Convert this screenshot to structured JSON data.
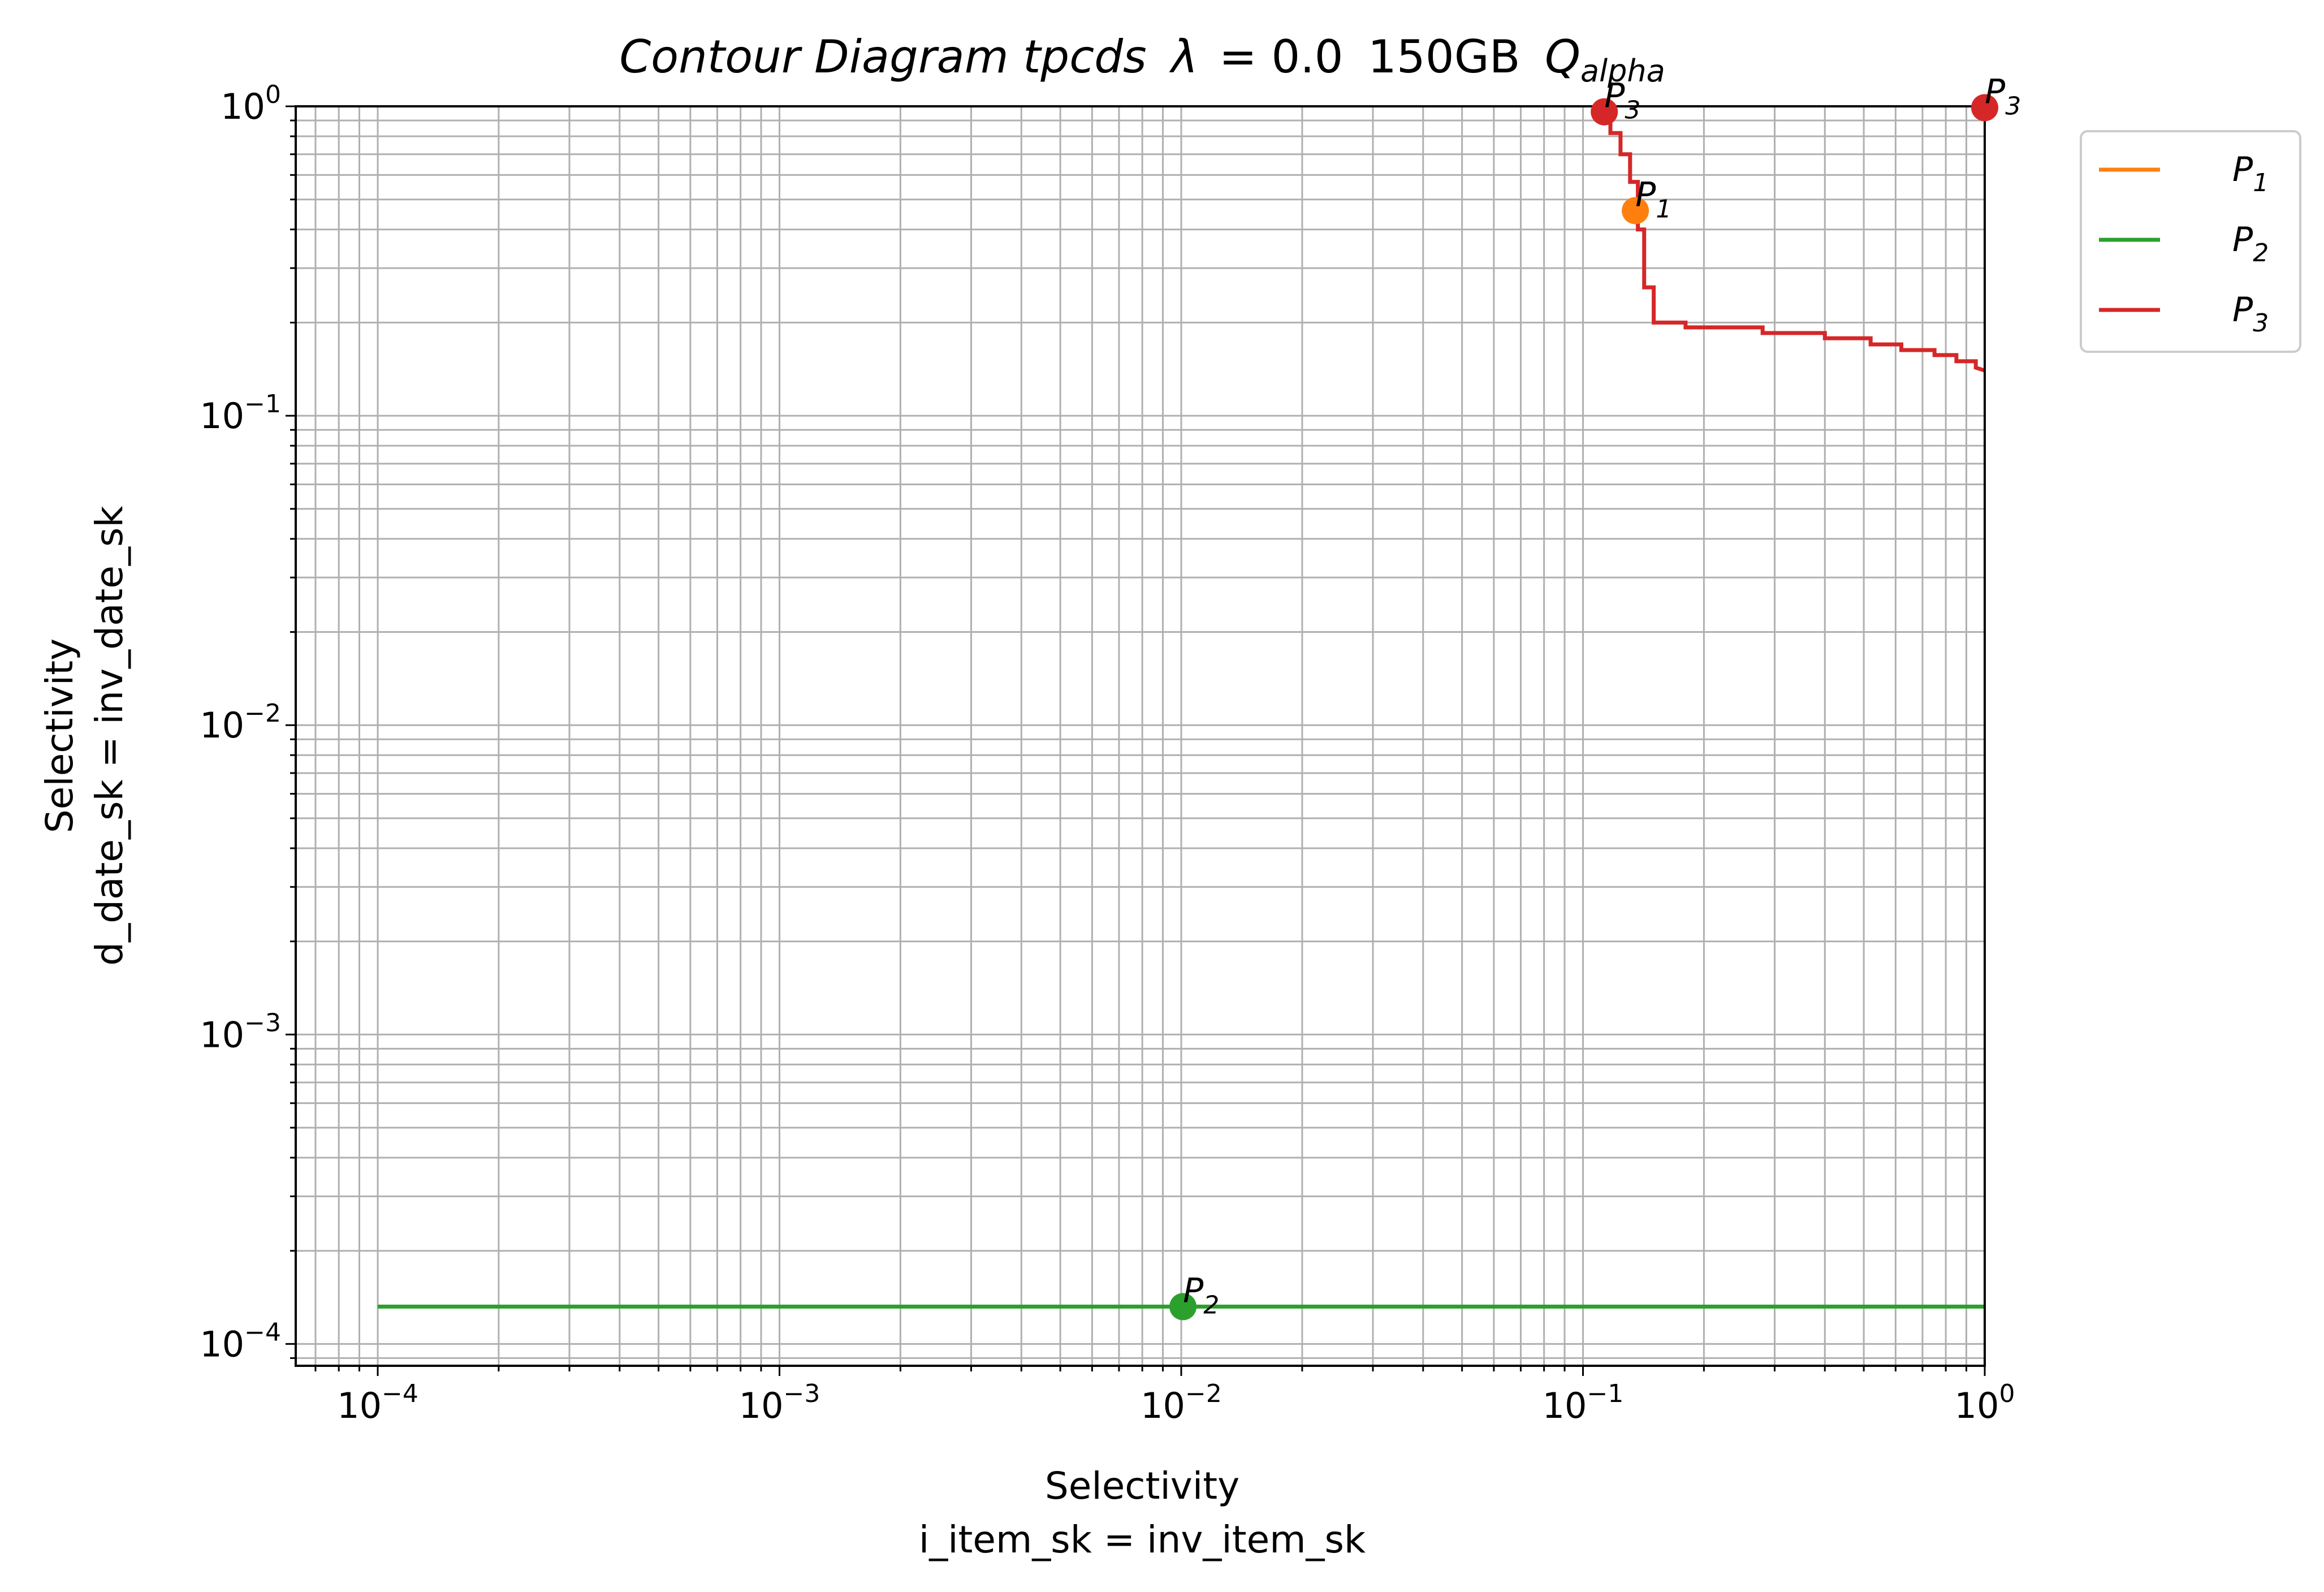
{
  "chart_data": {
    "type": "line",
    "title": {
      "main": "Contour Diagram tpcds",
      "lambda_symbol": "λ",
      "lambda_value": "= 0.0",
      "size": "150GB",
      "q_base": "Q",
      "q_sub": "alpha"
    },
    "xlabel": [
      "Selectivity",
      "i_item_sk = inv_item_sk"
    ],
    "ylabel": [
      "Selectivity",
      "d_date_sk = inv_date_sk"
    ],
    "x_scale": "log",
    "y_scale": "log",
    "xlim": [
      6.25e-05,
      1.0
    ],
    "ylim": [
      8.5e-05,
      1.0
    ],
    "grid": true,
    "legend_position": "outside-top-right",
    "x_ticks": [
      {
        "value": 0.0001,
        "base": "10",
        "exp": "−4"
      },
      {
        "value": 0.001,
        "base": "10",
        "exp": "−3"
      },
      {
        "value": 0.01,
        "base": "10",
        "exp": "−2"
      },
      {
        "value": 0.1,
        "base": "10",
        "exp": "−1"
      },
      {
        "value": 1,
        "base": "10",
        "exp": "0"
      }
    ],
    "y_ticks": [
      {
        "value": 0.0001,
        "base": "10",
        "exp": "−4"
      },
      {
        "value": 0.001,
        "base": "10",
        "exp": "−3"
      },
      {
        "value": 0.01,
        "base": "10",
        "exp": "−2"
      },
      {
        "value": 0.1,
        "base": "10",
        "exp": "−1"
      },
      {
        "value": 1,
        "base": "10",
        "exp": "0"
      }
    ],
    "series": [
      {
        "name": "P",
        "sub": "1",
        "color": "#ff7f0e",
        "x": [],
        "y": [],
        "points": [
          {
            "x": 0.135,
            "y": 0.46,
            "label": "P",
            "sub": "1"
          }
        ]
      },
      {
        "name": "P",
        "sub": "2",
        "color": "#2ca02c",
        "x": [
          0.0001,
          1.0
        ],
        "y": [
          0.000132,
          0.000132
        ],
        "points": [
          {
            "x": 0.0101,
            "y": 0.000132,
            "label": "P",
            "sub": "2"
          }
        ]
      },
      {
        "name": "P",
        "sub": "3",
        "color": "#d62728",
        "x": [
          0.108,
          0.108,
          0.117,
          0.117,
          0.124,
          0.124,
          0.131,
          0.131,
          0.137,
          0.137,
          0.142,
          0.142,
          0.15,
          0.15,
          0.18,
          0.18,
          0.28,
          0.28,
          0.4,
          0.4,
          0.52,
          0.52,
          0.62,
          0.62,
          0.75,
          0.75,
          0.85,
          0.85,
          0.95,
          0.95,
          1.0
        ],
        "y": [
          1.0,
          0.93,
          0.93,
          0.82,
          0.82,
          0.7,
          0.7,
          0.57,
          0.57,
          0.4,
          0.4,
          0.26,
          0.26,
          0.2,
          0.2,
          0.193,
          0.193,
          0.185,
          0.185,
          0.178,
          0.178,
          0.17,
          0.17,
          0.163,
          0.163,
          0.157,
          0.157,
          0.15,
          0.15,
          0.143,
          0.14
        ],
        "points": [
          {
            "x": 0.113,
            "y": 0.96,
            "label": "P",
            "sub": "3"
          },
          {
            "x": 1.0,
            "y": 0.99,
            "label": "P",
            "sub": "3"
          }
        ]
      }
    ]
  }
}
